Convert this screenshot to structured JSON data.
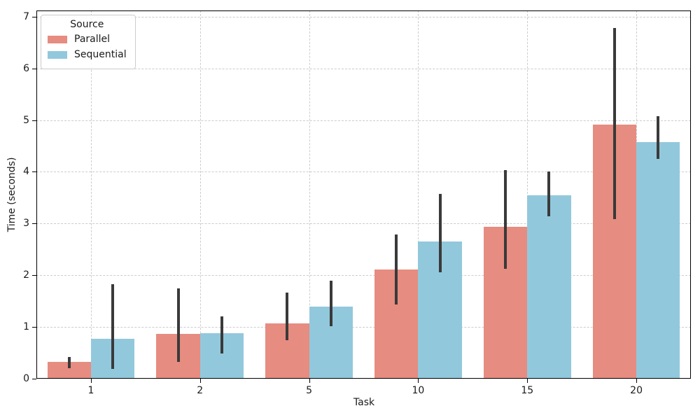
{
  "chart_data": {
    "type": "bar",
    "title": "",
    "xlabel": "Task",
    "ylabel": "Time (seconds)",
    "categories": [
      "1",
      "2",
      "5",
      "10",
      "15",
      "20"
    ],
    "series": [
      {
        "name": "Parallel",
        "color": "#e68c80",
        "values": [
          0.32,
          0.86,
          1.07,
          2.11,
          2.94,
          4.92
        ],
        "err_low": [
          0.2,
          0.33,
          0.75,
          1.44,
          2.12,
          3.08
        ],
        "err_high": [
          0.42,
          1.74,
          1.66,
          2.79,
          4.04,
          6.78
        ]
      },
      {
        "name": "Sequential",
        "color": "#92c8dc",
        "values": [
          0.77,
          0.88,
          1.39,
          2.66,
          3.54,
          4.57
        ],
        "err_low": [
          0.19,
          0.49,
          1.01,
          2.06,
          3.14,
          4.25
        ],
        "err_high": [
          1.83,
          1.21,
          1.89,
          3.57,
          4.0,
          5.08
        ]
      }
    ],
    "ylim": [
      0,
      7.12
    ],
    "yticks": [
      0,
      1,
      2,
      3,
      4,
      5,
      6,
      7
    ],
    "grid": {
      "style": "dashed",
      "color": "#cccccc"
    },
    "legend": {
      "title": "Source",
      "position": "upper-left"
    },
    "error_bar_color": "#3a3a3a",
    "bar_group_width_fraction": 0.8
  }
}
